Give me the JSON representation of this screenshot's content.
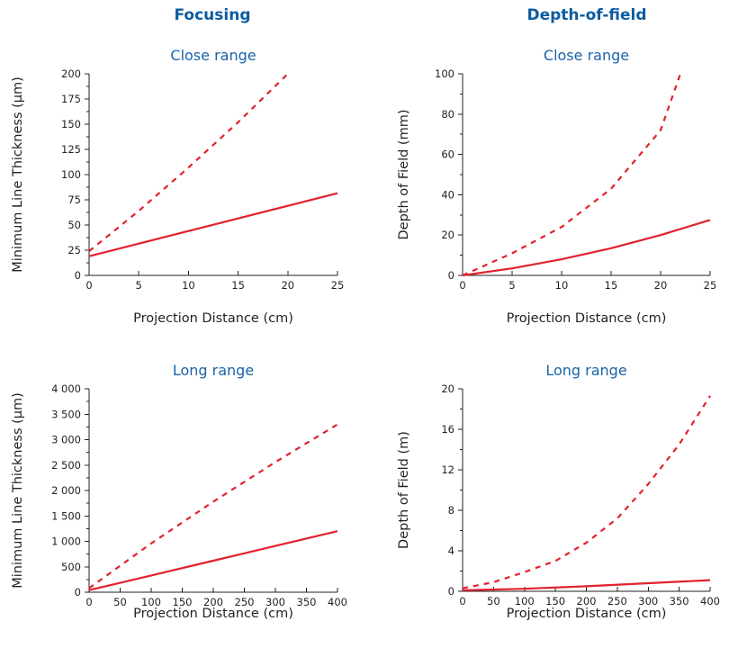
{
  "columns": {
    "left_title": "Focusing",
    "right_title": "Depth-of-field"
  },
  "colors": {
    "series": "#e2212d",
    "title": "#0d5c9e",
    "subtitle": "#1a63a8"
  },
  "chart_data": [
    {
      "type": "line",
      "title": "Close range",
      "xlabel": "Projection Distance (cm)",
      "ylabel": "Minimum Line Thickness (µm)",
      "xlim": [
        0,
        25
      ],
      "ylim": [
        0,
        200
      ],
      "xticks": [
        0,
        5,
        10,
        15,
        20,
        25
      ],
      "xtick_labels": [
        "0",
        "5",
        "10",
        "15",
        "20",
        "25"
      ],
      "yticks": [
        0,
        25,
        50,
        75,
        100,
        125,
        150,
        175,
        200
      ],
      "ytick_labels": [
        "0",
        "25",
        "50",
        "75",
        "100",
        "125",
        "150",
        "175",
        "200"
      ],
      "grid": false,
      "series": [
        {
          "style": "solid",
          "x": [
            0,
            5,
            10,
            15,
            20,
            25
          ],
          "y": [
            19,
            31.5,
            44,
            56.5,
            69,
            81.5
          ]
        },
        {
          "style": "dashed",
          "x": [
            0,
            5,
            10,
            15,
            20
          ],
          "y": [
            24,
            64,
            107,
            152,
            200
          ]
        }
      ]
    },
    {
      "type": "line",
      "title": "Close range",
      "xlabel": "Projection Distance (cm)",
      "ylabel": "Depth of Field (mm)",
      "xlim": [
        0,
        25
      ],
      "ylim": [
        0,
        100
      ],
      "xticks": [
        0,
        5,
        10,
        15,
        20,
        25
      ],
      "xtick_labels": [
        "0",
        "5",
        "10",
        "15",
        "20",
        "25"
      ],
      "yticks": [
        0,
        20,
        40,
        60,
        80,
        100
      ],
      "ytick_labels": [
        "0",
        "20",
        "40",
        "60",
        "80",
        "100"
      ],
      "grid": false,
      "series": [
        {
          "style": "solid",
          "x": [
            0,
            5,
            10,
            15,
            20,
            25
          ],
          "y": [
            0,
            3.5,
            8,
            13.5,
            20,
            27.5
          ]
        },
        {
          "style": "dashed",
          "x": [
            0,
            5,
            10,
            15,
            20,
            22
          ],
          "y": [
            0,
            11,
            24,
            43,
            72,
            100
          ]
        }
      ]
    },
    {
      "type": "line",
      "title": "Long range",
      "xlabel": "Projection Distance (cm)",
      "ylabel": "Minimum Line Thickness (µm)",
      "xlim": [
        0,
        400
      ],
      "ylim": [
        0,
        4000
      ],
      "xticks": [
        0,
        50,
        100,
        150,
        200,
        250,
        300,
        350,
        400
      ],
      "xtick_labels": [
        "0",
        "50",
        "100",
        "150",
        "200",
        "250",
        "300",
        "350",
        "400"
      ],
      "yticks": [
        0,
        500,
        1000,
        1500,
        2000,
        2500,
        3000,
        3500,
        4000
      ],
      "ytick_labels": [
        "0",
        "500",
        "1 000",
        "1 500",
        "2 000",
        "2 500",
        "3 000",
        "3 500",
        "4 000"
      ],
      "grid": false,
      "series": [
        {
          "style": "solid",
          "x": [
            0,
            100,
            200,
            300,
            400
          ],
          "y": [
            40,
            330,
            620,
            910,
            1200
          ]
        },
        {
          "style": "dashed",
          "x": [
            0,
            100,
            200,
            300,
            400
          ],
          "y": [
            80,
            960,
            1780,
            2560,
            3300
          ]
        }
      ]
    },
    {
      "type": "line",
      "title": "Long range",
      "xlabel": "Projection Distance (cm)",
      "ylabel": "Depth of Field (m)",
      "xlim": [
        0,
        400
      ],
      "ylim": [
        0,
        20
      ],
      "xticks": [
        0,
        50,
        100,
        150,
        200,
        250,
        300,
        350,
        400
      ],
      "xtick_labels": [
        "0",
        "50",
        "100",
        "150",
        "200",
        "250",
        "300",
        "350",
        "400"
      ],
      "yticks": [
        0,
        4,
        8,
        12,
        16,
        20
      ],
      "ytick_labels": [
        "0",
        "4",
        "8",
        "12",
        "16",
        "20"
      ],
      "grid": false,
      "series": [
        {
          "style": "solid",
          "x": [
            0,
            100,
            200,
            300,
            400
          ],
          "y": [
            0.1,
            0.25,
            0.5,
            0.8,
            1.1
          ]
        },
        {
          "style": "dashed",
          "x": [
            0,
            50,
            100,
            150,
            200,
            250,
            300,
            350,
            400
          ],
          "y": [
            0.3,
            0.9,
            1.9,
            3.0,
            4.8,
            7.2,
            10.6,
            14.5,
            19.3
          ]
        }
      ]
    }
  ]
}
